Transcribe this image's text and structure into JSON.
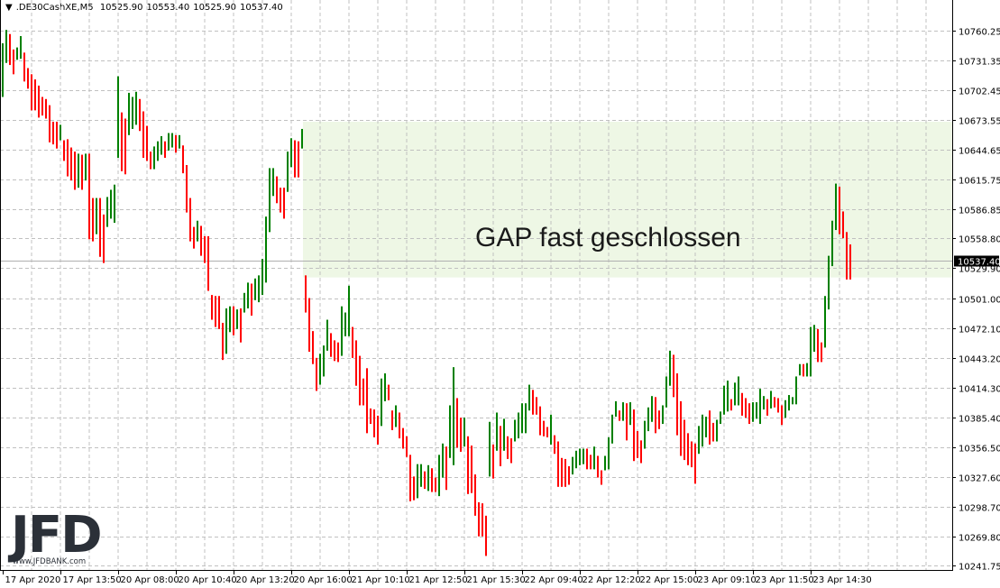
{
  "header": {
    "menu_icon": "triangle-down-icon",
    "symbol": ".DE30CashXE,M5",
    "open": "10525.90",
    "high": "10553.40",
    "low": "10525.90",
    "close": "10537.40"
  },
  "colors": {
    "up": "#008000",
    "down": "#ff0000",
    "grid": "#c0c0c0",
    "zone": "#eef7e5",
    "current_price_bg": "#000000",
    "logo": "#2b3038"
  },
  "logo": {
    "mark": "JFD",
    "url_text": "www.JFDBANK.com"
  },
  "chart_data": {
    "type": "ohlc-bars",
    "grid": true,
    "ylim": [
      10237.4,
      10790
    ],
    "y_ticks": [
      "10760.25",
      "10731.35",
      "10702.45",
      "10673.55",
      "10644.65",
      "10615.75",
      "10586.85",
      "10558.80",
      "10529.90",
      "10501.00",
      "10472.10",
      "10443.20",
      "10414.30",
      "10385.40",
      "10356.50",
      "10327.60",
      "10298.70",
      "10269.80",
      "10241.75"
    ],
    "x_ticks": [
      "17 Apr 2020",
      "17 Apr 13:50",
      "20 Apr 08:00",
      "20 Apr 10:40",
      "20 Apr 13:20",
      "20 Apr 16:00",
      "21 Apr 10:10",
      "21 Apr 12:50",
      "21 Apr 15:30",
      "22 Apr 09:40",
      "22 Apr 12:20",
      "22 Apr 15:00",
      "23 Apr 09:10",
      "23 Apr 11:50",
      "23 Apr 14:30"
    ],
    "current_price": "10537.40",
    "annotation": "GAP fast geschlossen",
    "gap_zone": {
      "from_bar": 84,
      "price_high": 10672,
      "price_low": 10521
    },
    "bars_high_low": [
      [
        10748,
        10696
      ],
      [
        10761,
        10729
      ],
      [
        10757,
        10727
      ],
      [
        10742,
        10718
      ],
      [
        10744,
        10732
      ],
      [
        10755,
        10733
      ],
      [
        10739,
        10711
      ],
      [
        10724,
        10704
      ],
      [
        10718,
        10683
      ],
      [
        10713,
        10683
      ],
      [
        10707,
        10676
      ],
      [
        10696,
        10678
      ],
      [
        10694,
        10675
      ],
      [
        10688,
        10652
      ],
      [
        10672,
        10650
      ],
      [
        10672,
        10646
      ],
      [
        10669,
        10654
      ],
      [
        10654,
        10634
      ],
      [
        10655,
        10619
      ],
      [
        10647,
        10615
      ],
      [
        10643,
        10606
      ],
      [
        10641,
        10608
      ],
      [
        10640,
        10606
      ],
      [
        10641,
        10615
      ],
      [
        10641,
        10558
      ],
      [
        10598,
        10556
      ],
      [
        10598,
        10563
      ],
      [
        10598,
        10541
      ],
      [
        10582,
        10535
      ],
      [
        10599,
        10570
      ],
      [
        10606,
        10578
      ],
      [
        10611,
        10574
      ],
      [
        10716,
        10637
      ],
      [
        10681,
        10624
      ],
      [
        10675,
        10621
      ],
      [
        10700,
        10659
      ],
      [
        10696,
        10665
      ],
      [
        10701,
        10669
      ],
      [
        10694,
        10663
      ],
      [
        10682,
        10637
      ],
      [
        10668,
        10634
      ],
      [
        10643,
        10626
      ],
      [
        10648,
        10626
      ],
      [
        10653,
        10634
      ],
      [
        10658,
        10640
      ],
      [
        10653,
        10637
      ],
      [
        10661,
        10644
      ],
      [
        10661,
        10647
      ],
      [
        10659,
        10642
      ],
      [
        10659,
        10646
      ],
      [
        10649,
        10622
      ],
      [
        10630,
        10584
      ],
      [
        10598,
        10556
      ],
      [
        10570,
        10549
      ],
      [
        10576,
        10556
      ],
      [
        10571,
        10542
      ],
      [
        10561,
        10535
      ],
      [
        10561,
        10508
      ],
      [
        10504,
        10480
      ],
      [
        10503,
        10473
      ],
      [
        10503,
        10471
      ],
      [
        10477,
        10441
      ],
      [
        10491,
        10447
      ],
      [
        10493,
        10468
      ],
      [
        10493,
        10465
      ],
      [
        10490,
        10471
      ],
      [
        10491,
        10458
      ],
      [
        10506,
        10487
      ],
      [
        10516,
        10491
      ],
      [
        10515,
        10484
      ],
      [
        10520,
        10499
      ],
      [
        10523,
        10497
      ],
      [
        10539,
        10504
      ],
      [
        10580,
        10516
      ],
      [
        10627,
        10565
      ],
      [
        10627,
        10600
      ],
      [
        10619,
        10593
      ],
      [
        10608,
        10584
      ],
      [
        10608,
        10578
      ],
      [
        10643,
        10604
      ],
      [
        10656,
        10628
      ],
      [
        10654,
        10618
      ],
      [
        10653,
        10618
      ],
      [
        10665,
        10646
      ],
      [
        10523,
        10487
      ],
      [
        10501,
        10449
      ],
      [
        10469,
        10437
      ],
      [
        10443,
        10411
      ],
      [
        10447,
        10417
      ],
      [
        10455,
        10425
      ],
      [
        10480,
        10450
      ],
      [
        10467,
        10444
      ],
      [
        10460,
        10440
      ],
      [
        10458,
        10439
      ],
      [
        10493,
        10445
      ],
      [
        10487,
        10464
      ],
      [
        10513,
        10464
      ],
      [
        10473,
        10443
      ],
      [
        10460,
        10416
      ],
      [
        10445,
        10397
      ],
      [
        10423,
        10397
      ],
      [
        10433,
        10370
      ],
      [
        10394,
        10379
      ],
      [
        10393,
        10366
      ],
      [
        10387,
        10359
      ],
      [
        10423,
        10377
      ],
      [
        10428,
        10401
      ],
      [
        10417,
        10402
      ],
      [
        10392,
        10373
      ],
      [
        10397,
        10376
      ],
      [
        10390,
        10365
      ],
      [
        10375,
        10355
      ],
      [
        10367,
        10347
      ],
      [
        10349,
        10304
      ],
      [
        10328,
        10305
      ],
      [
        10340,
        10307
      ],
      [
        10340,
        10318
      ],
      [
        10333,
        10316
      ],
      [
        10339,
        10314
      ],
      [
        10336,
        10313
      ],
      [
        10327,
        10313
      ],
      [
        10349,
        10309
      ],
      [
        10360,
        10327
      ],
      [
        10357,
        10315
      ],
      [
        10397,
        10346
      ],
      [
        10434,
        10339
      ],
      [
        10404,
        10356
      ],
      [
        10385,
        10352
      ],
      [
        10385,
        10357
      ],
      [
        10367,
        10311
      ],
      [
        10358,
        10312
      ],
      [
        10330,
        10290
      ],
      [
        10303,
        10270
      ],
      [
        10302,
        10270
      ],
      [
        10290,
        10251
      ],
      [
        10381,
        10328
      ],
      [
        10359,
        10326
      ],
      [
        10390,
        10353
      ],
      [
        10377,
        10338
      ],
      [
        10384,
        10353
      ],
      [
        10367,
        10345
      ],
      [
        10365,
        10341
      ],
      [
        10383,
        10362
      ],
      [
        10390,
        10365
      ],
      [
        10399,
        10370
      ],
      [
        10399,
        10370
      ],
      [
        10417,
        10392
      ],
      [
        10412,
        10388
      ],
      [
        10405,
        10388
      ],
      [
        10396,
        10368
      ],
      [
        10382,
        10367
      ],
      [
        10376,
        10366
      ],
      [
        10388,
        10359
      ],
      [
        10368,
        10350
      ],
      [
        10362,
        10318
      ],
      [
        10346,
        10318
      ],
      [
        10345,
        10318
      ],
      [
        10338,
        10320
      ],
      [
        10347,
        10330
      ],
      [
        10353,
        10336
      ],
      [
        10355,
        10339
      ],
      [
        10355,
        10340
      ],
      [
        10355,
        10335
      ],
      [
        10349,
        10335
      ],
      [
        10357,
        10335
      ],
      [
        10348,
        10327
      ],
      [
        10334,
        10320
      ],
      [
        10348,
        10334
      ],
      [
        10366,
        10335
      ],
      [
        10388,
        10360
      ],
      [
        10401,
        10386
      ],
      [
        10392,
        10382
      ],
      [
        10400,
        10382
      ],
      [
        10399,
        10363
      ],
      [
        10400,
        10378
      ],
      [
        10393,
        10343
      ],
      [
        10372,
        10346
      ],
      [
        10363,
        10341
      ],
      [
        10382,
        10355
      ],
      [
        10395,
        10372
      ],
      [
        10406,
        10381
      ],
      [
        10405,
        10370
      ],
      [
        10392,
        10374
      ],
      [
        10397,
        10379
      ],
      [
        10425,
        10395
      ],
      [
        10450,
        10416
      ],
      [
        10446,
        10405
      ],
      [
        10428,
        10368
      ],
      [
        10401,
        10348
      ],
      [
        10383,
        10344
      ],
      [
        10370,
        10339
      ],
      [
        10362,
        10337
      ],
      [
        10360,
        10321
      ],
      [
        10377,
        10350
      ],
      [
        10388,
        10357
      ],
      [
        10386,
        10366
      ],
      [
        10392,
        10359
      ],
      [
        10380,
        10362
      ],
      [
        10383,
        10362
      ],
      [
        10391,
        10379
      ],
      [
        10416,
        10388
      ],
      [
        10421,
        10391
      ],
      [
        10403,
        10392
      ],
      [
        10419,
        10397
      ],
      [
        10425,
        10397
      ],
      [
        10409,
        10387
      ],
      [
        10404,
        10385
      ],
      [
        10399,
        10379
      ],
      [
        10400,
        10381
      ],
      [
        10400,
        10384
      ],
      [
        10413,
        10379
      ],
      [
        10406,
        10393
      ],
      [
        10403,
        10387
      ],
      [
        10411,
        10394
      ],
      [
        10405,
        10395
      ],
      [
        10404,
        10390
      ],
      [
        10397,
        10378
      ],
      [
        10402,
        10385
      ],
      [
        10407,
        10392
      ],
      [
        10405,
        10398
      ],
      [
        10425,
        10398
      ],
      [
        10437,
        10426
      ],
      [
        10437,
        10425
      ],
      [
        10438,
        10425
      ],
      [
        10473,
        10425
      ],
      [
        10475,
        10449
      ],
      [
        10471,
        10439
      ],
      [
        10458,
        10439
      ],
      [
        10503,
        10453
      ],
      [
        10542,
        10490
      ],
      [
        10576,
        10532
      ],
      [
        10612,
        10567
      ],
      [
        10609,
        10563
      ],
      [
        10585,
        10559
      ],
      [
        10565,
        10519
      ],
      [
        10553,
        10519
      ]
    ]
  }
}
